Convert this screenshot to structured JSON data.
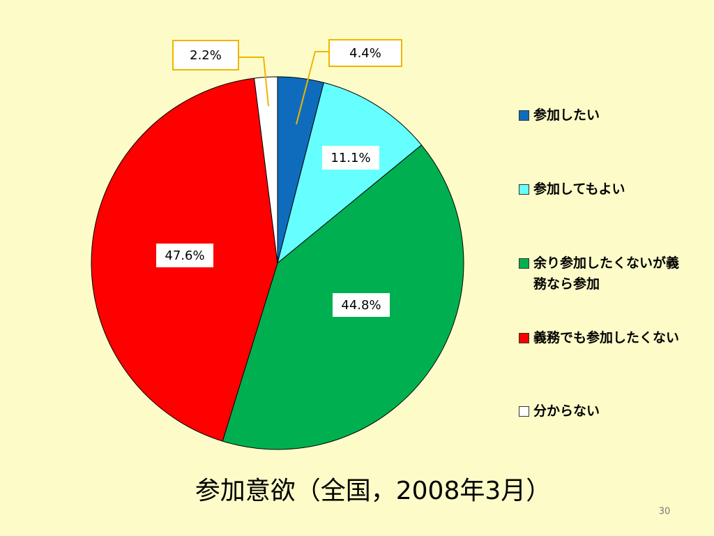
{
  "chart_data": {
    "type": "pie",
    "title": "参加意欲（全国，2008年3月）",
    "page_number": "30",
    "categories": [
      "参加したい",
      "参加してもよい",
      "余り参加したくないが義務なら参加",
      "義務でも参加したくない",
      "分からない"
    ],
    "values": [
      4.4,
      11.1,
      44.8,
      47.6,
      2.2
    ],
    "value_labels": [
      "4.4%",
      "11.1%",
      "44.8%",
      "47.6%",
      "2.2%"
    ],
    "colors": [
      "#0f6cbd",
      "#66ffff",
      "#00b050",
      "#ff0000",
      "#ffffff"
    ],
    "legend": "right"
  }
}
